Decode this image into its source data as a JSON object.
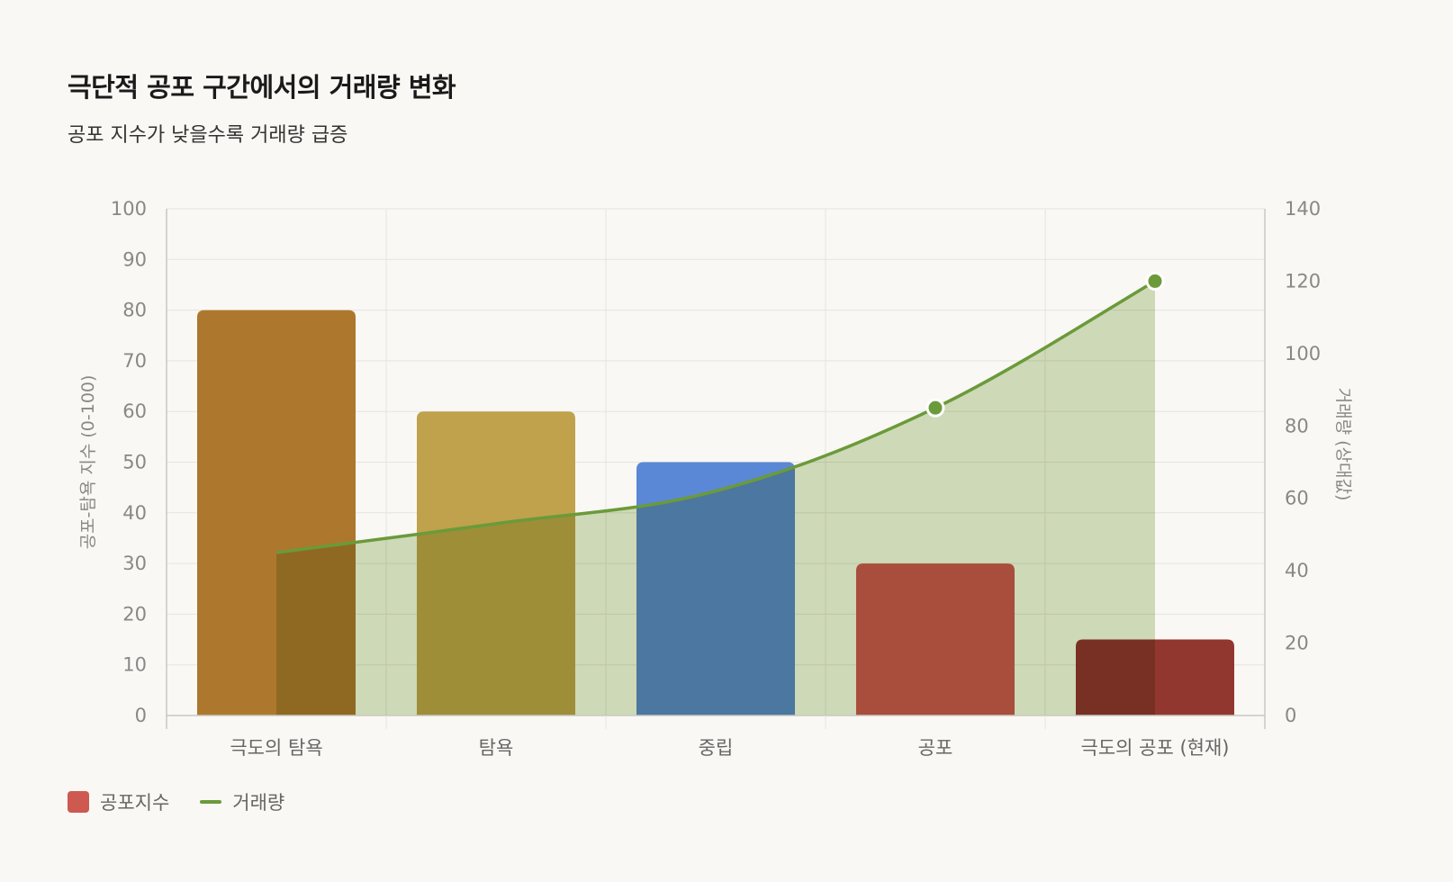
{
  "title": "극단적 공포 구간에서의 거래량 변화",
  "subtitle": "공포 지수가 낮을수록 거래량 급증",
  "colors": {
    "background": "#f9f8f4",
    "grid": "#e6e4df",
    "axis": "#c9c7c2",
    "volume_line": "#6b9a3a",
    "volume_fill": "#d1ddbc"
  },
  "chart_data": {
    "type": "bar",
    "categories": [
      "극도의 탐욕",
      "탐욕",
      "중립",
      "공포",
      "극도의 공포 (현재)"
    ],
    "series": [
      {
        "name": "공포지수",
        "type": "bar",
        "axis": "left",
        "values": [
          80,
          60,
          50,
          30,
          15
        ],
        "colors": [
          "#ad782d",
          "#bfa24b",
          "#5b88d6",
          "#cd5950",
          "#923630"
        ]
      },
      {
        "name": "거래량",
        "type": "area",
        "axis": "right",
        "values": [
          45,
          53,
          62,
          85,
          120
        ],
        "color": "#6b9a3a"
      }
    ],
    "ylabel": "공포-탐욕 지수 (0-100)",
    "ylim": [
      0,
      100
    ],
    "yticks": [
      "0",
      "10",
      "20",
      "30",
      "40",
      "50",
      "60",
      "70",
      "80",
      "90",
      "100"
    ],
    "y2label": "거래량 (상대값)",
    "y2lim": [
      0,
      140
    ],
    "y2ticks": [
      "0",
      "20",
      "40",
      "60",
      "80",
      "100",
      "120",
      "140"
    ],
    "grid": true,
    "legend_position": "bottom-left",
    "legend": [
      {
        "label": "공포지수",
        "icon": "box",
        "color": "#cd5950"
      },
      {
        "label": "거래량",
        "icon": "line",
        "color": "#6b9a3a"
      }
    ]
  }
}
